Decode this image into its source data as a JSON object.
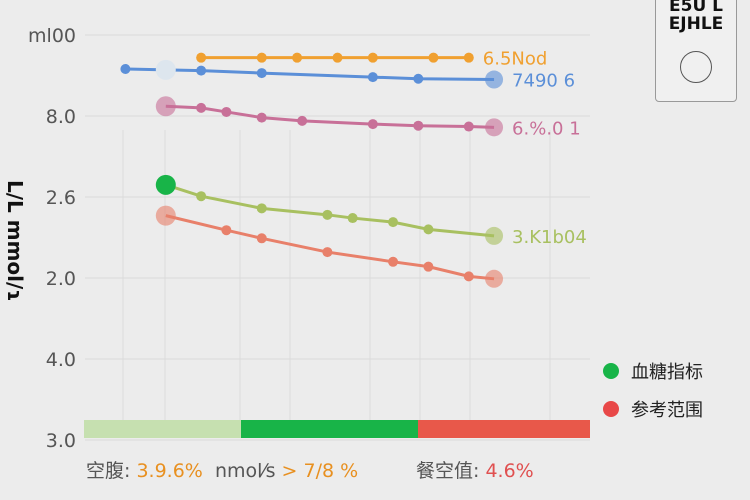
{
  "chart_data": {
    "type": "line",
    "ylabel": "L/L mmol/ɿ",
    "y_tick_labels": [
      "3.0",
      "4.0",
      "2.0",
      "2.6",
      "8.0",
      "ml00"
    ],
    "grid": true,
    "legend_position": "right",
    "series": [
      {
        "color": "#f0a030",
        "end_label": "6.5Nod",
        "x": [
          2.3,
          3.5,
          4.2,
          5.0,
          5.7,
          6.9,
          7.6
        ],
        "y": [
          4.72,
          4.72,
          4.72,
          4.72,
          4.72,
          4.72,
          4.72
        ]
      },
      {
        "color": "#5b8fd8",
        "end_label": "7490 6",
        "x": [
          0.8,
          1.6,
          2.3,
          3.5,
          5.7,
          6.6,
          8.1
        ],
        "y": [
          4.58,
          4.57,
          4.56,
          4.53,
          4.48,
          4.46,
          4.45
        ]
      },
      {
        "color": "#c87098",
        "end_label": "6.%.0 1",
        "x": [
          1.6,
          2.3,
          2.8,
          3.5,
          4.3,
          5.7,
          6.6,
          7.6,
          8.1
        ],
        "y": [
          4.12,
          4.1,
          4.05,
          3.98,
          3.94,
          3.9,
          3.88,
          3.87,
          3.86
        ]
      },
      {
        "color": "#a8c060",
        "end_label": "3.K1b04",
        "x": [
          1.6,
          2.3,
          3.5,
          4.8,
          5.3,
          6.1,
          6.8,
          8.1
        ],
        "y": [
          3.15,
          3.01,
          2.86,
          2.78,
          2.74,
          2.69,
          2.6,
          2.52
        ]
      },
      {
        "color": "#e8806a",
        "end_label": "",
        "x": [
          1.6,
          2.8,
          3.5,
          4.8,
          6.1,
          6.8,
          7.6,
          8.1
        ],
        "y": [
          2.77,
          2.59,
          2.49,
          2.32,
          2.2,
          2.14,
          2.02,
          1.99
        ]
      }
    ],
    "range_bar": [
      {
        "color": "#c6e0b0"
      },
      {
        "color": "#18b448"
      },
      {
        "color": "#e8584a"
      }
    ]
  },
  "legend": [
    {
      "label": "血糖指标",
      "color": "#18b448"
    },
    {
      "label": "参考范围",
      "color": "#e84848"
    }
  ],
  "badge": {
    "line1": "E5U L",
    "line2": "EJHLE"
  },
  "footer": {
    "fasting_label": "空腹:",
    "fasting_value": "3.9.6%",
    "unit": "nmol⁄s",
    "threshold": "> 7/8 %",
    "meal_label": "餐空值:",
    "meal_value": "4.6%"
  }
}
